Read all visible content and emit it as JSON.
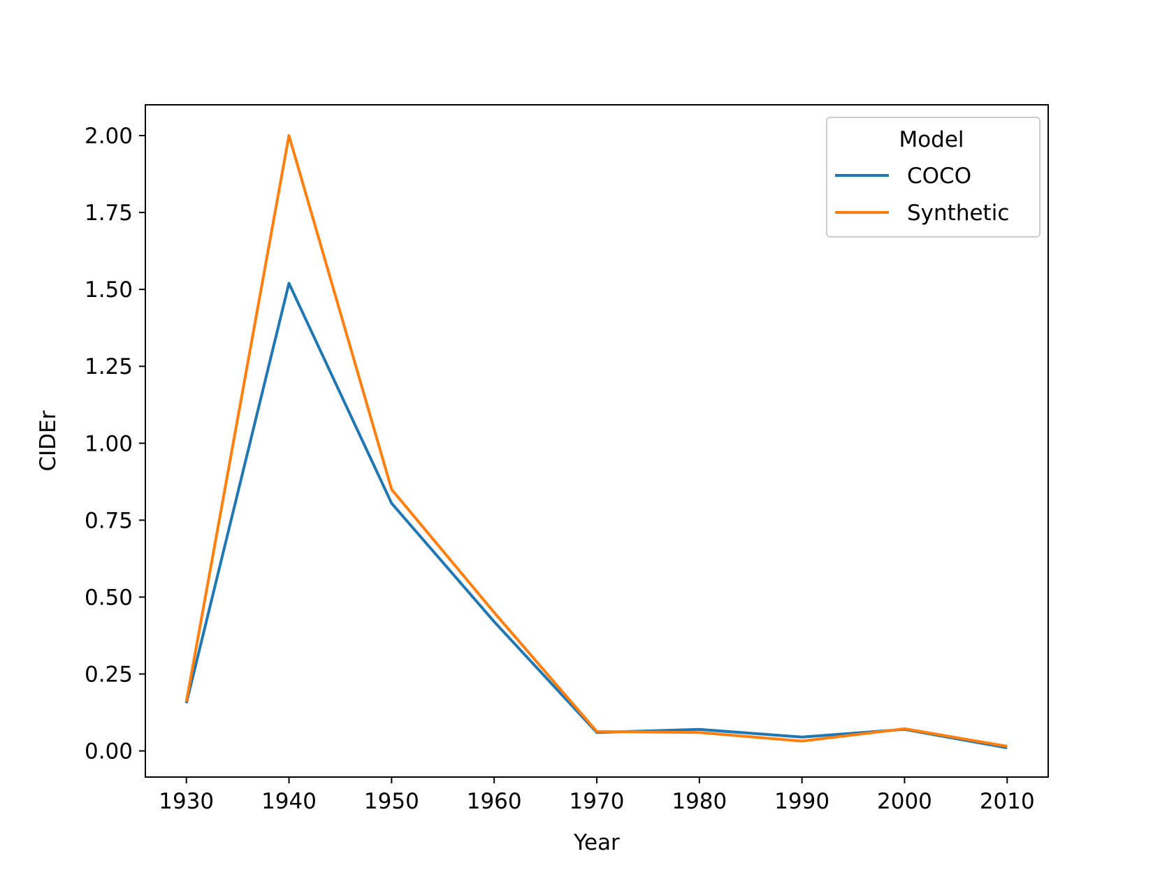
{
  "chart_data": {
    "type": "line",
    "title": "",
    "xlabel": "Year",
    "ylabel": "CIDEr",
    "x": [
      1930,
      1940,
      1950,
      1960,
      1970,
      1980,
      1990,
      2000,
      2010
    ],
    "xlim": [
      1926,
      2014
    ],
    "ylim": [
      -0.085,
      2.1
    ],
    "xticks": [
      1930,
      1940,
      1950,
      1960,
      1970,
      1980,
      1990,
      2000,
      2010
    ],
    "yticks": [
      "0.00",
      "0.25",
      "0.50",
      "0.75",
      "1.00",
      "1.25",
      "1.50",
      "1.75",
      "2.00"
    ],
    "grid": false,
    "legend": {
      "title": "Model",
      "placement": "top-right"
    },
    "series": [
      {
        "name": "COCO",
        "color": "#1f77b4",
        "values": [
          0.155,
          1.52,
          0.805,
          0.42,
          0.06,
          0.07,
          0.045,
          0.07,
          0.01
        ]
      },
      {
        "name": "Synthetic",
        "color": "#ff7f0e",
        "values": [
          0.16,
          2.0,
          0.85,
          0.45,
          0.063,
          0.06,
          0.032,
          0.072,
          0.015
        ]
      }
    ]
  }
}
